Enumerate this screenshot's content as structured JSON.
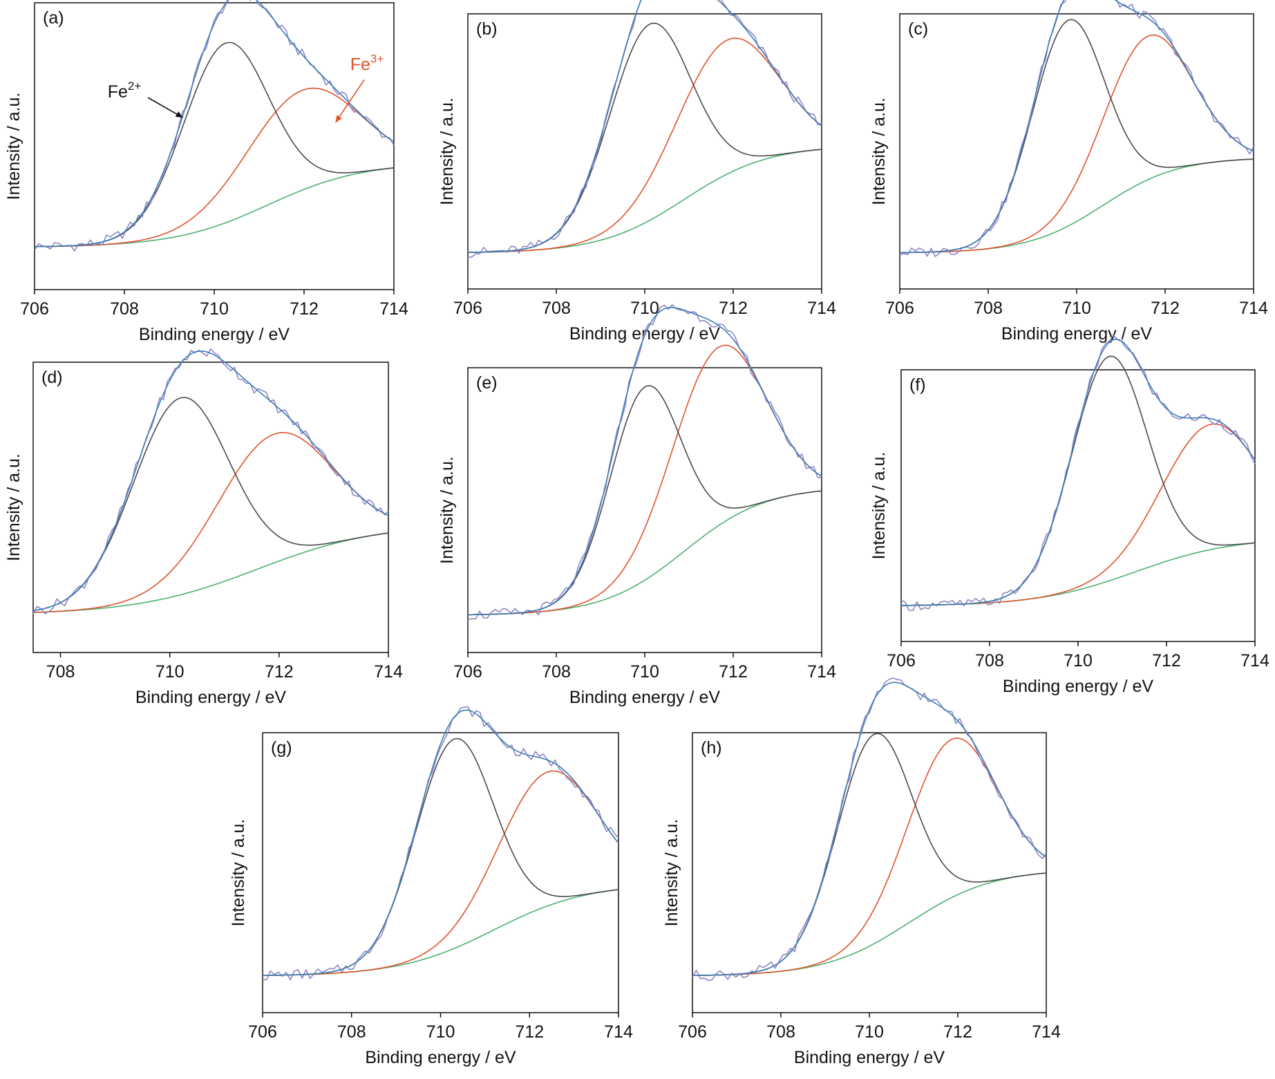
{
  "colors": {
    "raw": "#8f86c4",
    "fit": "#3d7db6",
    "fe2": "#4a4a4a",
    "fe3": "#e0512c",
    "background": "#4bb070"
  },
  "chart_data": [
    {
      "type": "line",
      "panel_label": "(a)",
      "xlabel": "Binding energy / eV",
      "ylabel": "Intensity / a.u.",
      "xlim": [
        706,
        714
      ],
      "ylim": [
        -0.15,
        1.0
      ],
      "xticks": [
        "706",
        "708",
        "710",
        "712",
        "714"
      ],
      "components": {
        "baseline": 0.02,
        "bg_step": 0.34,
        "bg_center": 711.2,
        "bg_width": 1.05,
        "fe2": {
          "center": 710.25,
          "height": 0.72,
          "sigma": 0.95
        },
        "fe3": {
          "center": 711.95,
          "height": 0.4,
          "sigma": 1.25
        }
      },
      "annotations": [
        {
          "text": "Fe",
          "sup": "2+",
          "color": "#111111",
          "x": 708.0,
          "y": 0.62,
          "arrow_to": [
            709.3,
            0.54
          ]
        },
        {
          "text": "Fe",
          "sup": "3+",
          "color": "#e0512c",
          "x": 713.4,
          "y": 0.73,
          "arrow_to": [
            712.7,
            0.52
          ]
        }
      ]
    },
    {
      "type": "line",
      "panel_label": "(b)",
      "xlabel": "Binding energy / eV",
      "ylabel": "Intensity / a.u.",
      "xlim": [
        706,
        714
      ],
      "ylim": [
        -0.15,
        1.0
      ],
      "xticks": [
        "706",
        "708",
        "710",
        "712",
        "714"
      ],
      "components": {
        "baseline": 0.0,
        "bg_step": 0.45,
        "bg_center": 710.9,
        "bg_width": 0.95,
        "fe2": {
          "center": 710.1,
          "height": 0.82,
          "sigma": 0.92
        },
        "fe3": {
          "center": 711.85,
          "height": 0.56,
          "sigma": 1.15
        }
      },
      "annotations": []
    },
    {
      "type": "line",
      "panel_label": "(c)",
      "xlabel": "Binding energy / eV",
      "ylabel": "Intensity / a.u.",
      "xlim": [
        706,
        714
      ],
      "ylim": [
        -0.15,
        1.0
      ],
      "xticks": [
        "706",
        "708",
        "710",
        "712",
        "714"
      ],
      "components": {
        "baseline": 0.0,
        "bg_step": 0.4,
        "bg_center": 710.6,
        "bg_width": 0.85,
        "fe2": {
          "center": 709.8,
          "height": 0.86,
          "sigma": 0.82
        },
        "fe3": {
          "center": 711.6,
          "height": 0.6,
          "sigma": 1.0
        }
      },
      "annotations": []
    },
    {
      "type": "line",
      "panel_label": "(d)",
      "xlabel": "Binding energy / eV",
      "ylabel": "Intensity / a.u.",
      "xlim": [
        707.5,
        714
      ],
      "ylim": [
        -0.15,
        1.0
      ],
      "xticks": [
        "708",
        "710",
        "712",
        "714"
      ],
      "components": {
        "baseline": 0.0,
        "bg_step": 0.36,
        "bg_center": 711.6,
        "bg_width": 1.1,
        "fe2": {
          "center": 710.2,
          "height": 0.78,
          "sigma": 0.88
        },
        "fe3": {
          "center": 711.9,
          "height": 0.51,
          "sigma": 1.05
        }
      },
      "annotations": []
    },
    {
      "type": "line",
      "panel_label": "(e)",
      "xlabel": "Binding energy / eV",
      "ylabel": "Intensity / a.u.",
      "xlim": [
        706,
        714
      ],
      "ylim": [
        -0.15,
        1.0
      ],
      "xticks": [
        "706",
        "708",
        "710",
        "712",
        "714"
      ],
      "components": {
        "baseline": 0.0,
        "bg_step": 0.52,
        "bg_center": 710.9,
        "bg_width": 0.92,
        "fe2": {
          "center": 710.0,
          "height": 0.78,
          "sigma": 0.8
        },
        "fe3": {
          "center": 711.65,
          "height": 0.72,
          "sigma": 1.05
        }
      },
      "annotations": []
    },
    {
      "type": "line",
      "panel_label": "(f)",
      "xlabel": "Binding energy / eV",
      "ylabel": "Intensity / a.u.",
      "xlim": [
        706,
        714
      ],
      "ylim": [
        -0.15,
        1.0
      ],
      "xticks": [
        "706",
        "708",
        "710",
        "712",
        "714"
      ],
      "components": {
        "baseline": 0.0,
        "bg_step": 0.29,
        "bg_center": 711.3,
        "bg_width": 1.1,
        "fe2": {
          "center": 710.7,
          "height": 0.95,
          "sigma": 0.85
        },
        "fe3": {
          "center": 713.0,
          "height": 0.53,
          "sigma": 1.1
        }
      },
      "annotations": []
    },
    {
      "type": "line",
      "panel_label": "(g)",
      "xlabel": "Binding energy / eV",
      "ylabel": "Intensity / a.u.",
      "xlim": [
        706,
        714
      ],
      "ylim": [
        -0.15,
        1.0
      ],
      "xticks": [
        "706",
        "708",
        "710",
        "712",
        "714"
      ],
      "components": {
        "baseline": 0.0,
        "bg_step": 0.38,
        "bg_center": 711.2,
        "bg_width": 1.05,
        "fe2": {
          "center": 710.3,
          "height": 0.86,
          "sigma": 0.88
        },
        "fe3": {
          "center": 712.4,
          "height": 0.55,
          "sigma": 1.1
        }
      },
      "annotations": []
    },
    {
      "type": "line",
      "panel_label": "(h)",
      "xlabel": "Binding energy / eV",
      "ylabel": "Intensity / a.u.",
      "xlim": [
        706,
        714
      ],
      "ylim": [
        -0.15,
        1.0
      ],
      "xticks": [
        "706",
        "708",
        "710",
        "712",
        "714"
      ],
      "components": {
        "baseline": 0.0,
        "bg_step": 0.44,
        "bg_center": 710.9,
        "bg_width": 0.95,
        "fe2": {
          "center": 710.1,
          "height": 0.86,
          "sigma": 0.85
        },
        "fe3": {
          "center": 711.85,
          "height": 0.65,
          "sigma": 1.0
        }
      },
      "annotations": []
    }
  ]
}
